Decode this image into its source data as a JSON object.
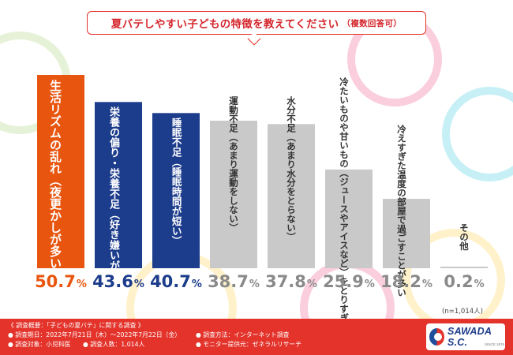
{
  "title": "夏バテしやすい子どもの特徴を教えてください",
  "title_note": "（複数回答可）",
  "sample_note": "(n=1,014人)",
  "chart_data": {
    "type": "bar",
    "title": "夏バテしやすい子どもの特徴を教えてください（複数回答可）",
    "ylim": [
      0,
      60
    ],
    "grid": false,
    "unit": "%",
    "bars": [
      {
        "label": "生活リズムの乱れ（夜更かしが多いなど）",
        "lines": [
          "生活リズムの乱れ",
          "（夜更かしが多いなど）"
        ],
        "value": 50.7,
        "color": "#e8550e"
      },
      {
        "label": "栄養の偏り・栄養不足（好き嫌いが多い、少食など）",
        "lines": [
          "栄養の偏り・栄養不足",
          "（好き嫌いが多い、少食など）"
        ],
        "value": 43.6,
        "color": "#1c3c8c"
      },
      {
        "label": "睡眠不足（睡眠時間が短い）",
        "lines": [
          "睡眠不足（睡眠時間が短い）"
        ],
        "value": 40.7,
        "color": "#1c3c8c"
      },
      {
        "label": "運動不足（あまり運動をしない）",
        "lines": [
          "運動不足（あまり運動をしない）"
        ],
        "value": 38.7,
        "color": "#c9c9c9"
      },
      {
        "label": "水分不足（あまり水分をとらない）",
        "lines": [
          "水分不足（あまり水分をとらない）"
        ],
        "value": 37.8,
        "color": "#c9c9c9"
      },
      {
        "label": "冷たいものや甘いもの（ジュースやアイスなど）をとりすぎている",
        "lines": [
          "冷たいものや甘いもの（ジュースや",
          "アイスなど）をとりすぎている"
        ],
        "value": 25.9,
        "color": "#c9c9c9"
      },
      {
        "label": "冷えすぎた温度の部屋で過ごすことが多い",
        "lines": [
          "冷えすぎた温度の部屋で",
          "過ごすことが多い"
        ],
        "value": 18.2,
        "color": "#c9c9c9"
      },
      {
        "label": "その他",
        "lines": [
          "その他"
        ],
        "value": 0.2,
        "color": "#c9c9c9"
      }
    ],
    "pct_colors": [
      "#e8550e",
      "#1c3c8c",
      "#1c3c8c",
      "#8a8a8a",
      "#8a8a8a",
      "#8a8a8a",
      "#8a8a8a",
      "#8a8a8a"
    ]
  },
  "footer": {
    "overview": "《 調査概要：「子どもの夏バテ」に関する調査 》",
    "period": "● 調査期日：2022年7月21日（木）〜2022年7月22日（金）",
    "method": "● 調査方法：インターネット調査",
    "target": "● 調査対象：小児科医",
    "count": "● 調査人数：1,014人",
    "provider": "● モニター提供元：ゼネラルリサーチ"
  },
  "logo": {
    "text": "SAWADA S.C.",
    "sub": "SINCE 1976",
    "icon": "sawada-logo-icon"
  },
  "colors": {
    "accent": "#e3332b",
    "orange": "#e8550e",
    "navy": "#1c3c8c",
    "gray": "#c9c9c9"
  }
}
